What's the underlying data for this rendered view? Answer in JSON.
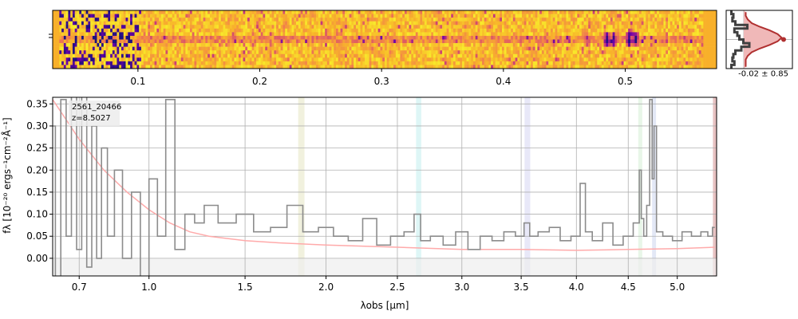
{
  "chart_data": [
    {
      "type": "heatmap",
      "title": "",
      "x_ticks": [
        "0.1",
        "0.2",
        "0.3",
        "0.4",
        "0.5"
      ],
      "x_tick_values": [
        0.1,
        0.2,
        0.3,
        0.4,
        0.5
      ],
      "xlim": [
        0.03,
        0.575
      ],
      "n_rows": 16,
      "n_cols": 300,
      "colormap": "plasma",
      "colors": {
        "low": "#1b1080",
        "mid": "#c73a7a",
        "high": "#f8f02a",
        "band": "#f8b02a"
      },
      "features": [
        {
          "x": 0.485,
          "strength": 1.0
        },
        {
          "x": 0.49,
          "strength": 0.8
        },
        {
          "x": 0.503,
          "strength": 1.0
        },
        {
          "x": 0.508,
          "strength": 0.9
        },
        {
          "x": 0.467,
          "strength": 0.4
        }
      ]
    },
    {
      "type": "line",
      "title": "",
      "annotation": "-0.02 ± 0.85",
      "profile_values": [
        0.1,
        0.2,
        0.15,
        0.3,
        0.9,
        0.25,
        0.4,
        0.5,
        0.7,
        1.0,
        0.6,
        0.3,
        0.2,
        0.15,
        0.25,
        0.1
      ],
      "fit_values": [
        0.05,
        0.05,
        0.1,
        0.2,
        0.4,
        0.65,
        0.85,
        0.95,
        0.85,
        0.65,
        0.4,
        0.2,
        0.1,
        0.05,
        0.05,
        0.05
      ],
      "colors": {
        "profile": "#404040",
        "fit": "#b03030",
        "fill": "#f0b8b8"
      }
    },
    {
      "type": "line",
      "title": "",
      "xlabel": "λobs [μm]",
      "ylabel": "fλ [10⁻²⁰ ergs⁻¹cm⁻²Å⁻¹]",
      "x_ticks": [
        "0.7",
        "1.0",
        "1.5",
        "2.0",
        "2.5",
        "3.0",
        "3.5",
        "4.0",
        "4.5",
        "5.0"
      ],
      "x_tick_values": [
        0.7,
        1.0,
        1.5,
        2.0,
        2.5,
        3.0,
        3.5,
        4.0,
        4.5,
        5.0
      ],
      "y_ticks": [
        "0.00",
        "0.05",
        "0.10",
        "0.15",
        "0.20",
        "0.25",
        "0.30",
        "0.35"
      ],
      "y_tick_values": [
        0.0,
        0.05,
        0.1,
        0.15,
        0.2,
        0.25,
        0.3,
        0.35
      ],
      "ylim": [
        -0.04,
        0.365
      ],
      "grid": true,
      "legend_text": [
        "2561_20466",
        "z=8.5027"
      ],
      "spectrum": {
        "x": [
          0.6,
          0.62,
          0.64,
          0.66,
          0.68,
          0.7,
          0.72,
          0.74,
          0.76,
          0.78,
          0.8,
          0.83,
          0.86,
          0.9,
          0.94,
          0.98,
          1.02,
          1.06,
          1.1,
          1.15,
          1.2,
          1.25,
          1.3,
          1.4,
          1.5,
          1.6,
          1.7,
          1.8,
          1.9,
          2.0,
          2.1,
          2.2,
          2.3,
          2.4,
          2.5,
          2.6,
          2.65,
          2.7,
          2.8,
          2.9,
          3.0,
          3.1,
          3.2,
          3.3,
          3.4,
          3.5,
          3.55,
          3.6,
          3.7,
          3.8,
          3.9,
          4.0,
          4.07,
          4.1,
          4.2,
          4.3,
          4.4,
          4.5,
          4.6,
          4.62,
          4.64,
          4.67,
          4.7,
          4.73,
          4.75,
          4.77,
          4.8,
          4.9,
          5.0,
          5.1,
          5.2,
          5.3,
          5.35,
          5.4
        ],
        "y": [
          0.3,
          -0.05,
          0.36,
          0.05,
          0.4,
          0.02,
          0.38,
          -0.02,
          0.3,
          0.0,
          0.25,
          0.05,
          0.2,
          0.0,
          0.15,
          -0.05,
          0.18,
          0.05,
          0.36,
          0.02,
          0.1,
          0.08,
          0.12,
          0.08,
          0.1,
          0.06,
          0.07,
          0.12,
          0.06,
          0.07,
          0.05,
          0.04,
          0.09,
          0.03,
          0.05,
          0.06,
          0.1,
          0.04,
          0.05,
          0.03,
          0.06,
          0.02,
          0.05,
          0.04,
          0.06,
          0.05,
          0.08,
          0.05,
          0.06,
          0.07,
          0.04,
          0.05,
          0.17,
          0.06,
          0.04,
          0.08,
          0.03,
          0.05,
          0.08,
          0.2,
          0.09,
          0.05,
          0.12,
          0.36,
          0.18,
          0.3,
          0.06,
          0.05,
          0.04,
          0.06,
          0.05,
          0.06,
          0.05,
          0.07
        ],
        "color": "#8c8c8c"
      },
      "error": {
        "x": [
          0.6,
          0.7,
          0.8,
          0.9,
          1.0,
          1.1,
          1.2,
          1.3,
          1.5,
          1.7,
          2.0,
          2.5,
          3.0,
          3.5,
          4.0,
          4.5,
          5.0,
          5.4
        ],
        "y": [
          0.36,
          0.27,
          0.2,
          0.15,
          0.11,
          0.08,
          0.06,
          0.05,
          0.04,
          0.035,
          0.03,
          0.025,
          0.02,
          0.02,
          0.018,
          0.02,
          0.022,
          0.025
        ],
        "color": "#ffaaaa"
      },
      "shaded_bands": [
        {
          "x0": 1.82,
          "x1": 1.86,
          "color": "#e8e8c8"
        },
        {
          "x0": 2.64,
          "x1": 2.68,
          "color": "#c8f0f0"
        },
        {
          "x0": 3.53,
          "x1": 3.58,
          "color": "#d8d8f4"
        },
        {
          "x0": 4.6,
          "x1": 4.64,
          "color": "#d8f0d8"
        },
        {
          "x0": 4.74,
          "x1": 4.78,
          "color": "#d0d8f0"
        },
        {
          "x0": 5.38,
          "x1": 5.42,
          "color": "#d89a9a"
        }
      ]
    }
  ]
}
